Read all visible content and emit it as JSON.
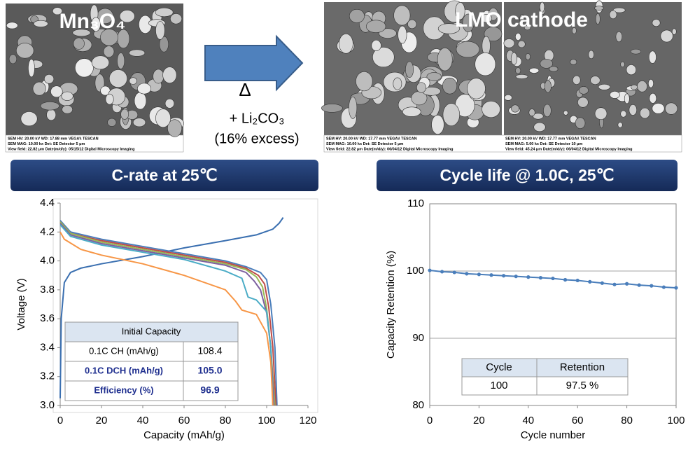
{
  "slide": {
    "left_image": {
      "label": "Mn₃O₄",
      "caption": [
        "SEM HV: 20.00 kV   WD: 17.88 mm            VEGA\\\\ TESCAN",
        "SEM MAG: 10.00 kx   Det: SE Detector   5 μm",
        "View field: 22.82 μm   Date(m/d/y): 05/15/12   Digital Microscopy Imaging"
      ]
    },
    "right_image": {
      "label": "LMO cathode",
      "caption_a": [
        "SEM HV: 20.00 kV   WD: 17.77 mm          VEGA\\\\ TESCAN",
        "SEM MAG: 10.00 kx   Det: SE Detector   5 μm",
        "View field: 22.82 μm   Date(m/d/y): 06/04/12   Digital Microscopy Imaging"
      ],
      "caption_b": [
        "SEM HV: 20.00 kV   WD: 17.77 mm          VEGA\\\\ TESCAN",
        "SEM MAG: 5.00 kx   Det: SE Detector   10 μm",
        "View field: 45.24 μm   Date(m/d/y): 06/04/12   Digital Microscopy Imaging"
      ]
    },
    "arrow": {
      "symbol": "Δ",
      "reagent": "+ Li₂CO₃",
      "note": "(16% excess)"
    },
    "banners": [
      "C-rate at 25℃",
      "Cycle life @ 1.0C, 25℃"
    ]
  },
  "chart_data": [
    {
      "type": "line",
      "xlabel": "Capacity  (mAh/g)",
      "ylabel": "Voltage (V)",
      "xlim": [
        0,
        120
      ],
      "xticks": [
        0,
        20,
        40,
        60,
        80,
        100,
        120
      ],
      "ylim": [
        3.0,
        4.4
      ],
      "yticks": [
        {
          "value": 3.0,
          "label": "3.0"
        },
        3.2,
        3.4,
        3.6,
        3.8,
        {
          "value": 4.0,
          "label": "4.0"
        },
        4.2,
        4.4
      ],
      "series": [
        {
          "color": "#3a6fb0",
          "x": [
            0,
            0.5,
            2,
            5,
            10,
            20,
            40,
            60,
            80,
            95,
            103,
            106,
            108
          ],
          "values": [
            3.05,
            3.6,
            3.85,
            3.92,
            3.95,
            3.98,
            4.03,
            4.09,
            4.14,
            4.18,
            4.22,
            4.26,
            4.3
          ]
        },
        {
          "color": "#4a7ebb",
          "x": [
            0,
            5,
            20,
            40,
            60,
            80,
            90,
            97,
            100,
            102,
            104,
            105
          ],
          "values": [
            4.28,
            4.2,
            4.15,
            4.1,
            4.05,
            4.0,
            3.96,
            3.92,
            3.87,
            3.7,
            3.4,
            3.0
          ]
        },
        {
          "color": "#be4b48",
          "x": [
            0,
            5,
            20,
            40,
            60,
            80,
            90,
            96,
            99,
            101,
            103,
            104.5
          ],
          "values": [
            4.27,
            4.19,
            4.14,
            4.09,
            4.04,
            3.99,
            3.95,
            3.9,
            3.84,
            3.68,
            3.4,
            3.0
          ]
        },
        {
          "color": "#98b954",
          "x": [
            0,
            5,
            20,
            40,
            60,
            80,
            90,
            95,
            98,
            100,
            102,
            104
          ],
          "values": [
            4.27,
            4.19,
            4.13,
            4.08,
            4.03,
            3.98,
            3.94,
            3.89,
            3.82,
            3.67,
            3.4,
            3.0
          ]
        },
        {
          "color": "#7d60a0",
          "x": [
            0,
            5,
            20,
            40,
            60,
            80,
            90,
            94,
            97,
            100,
            102,
            103.5
          ],
          "values": [
            4.26,
            4.18,
            4.12,
            4.07,
            4.02,
            3.97,
            3.92,
            3.86,
            3.8,
            3.64,
            3.4,
            3.0
          ]
        },
        {
          "color": "#4bacc6",
          "x": [
            0,
            5,
            20,
            40,
            60,
            80,
            88,
            91,
            95,
            100,
            102,
            103
          ],
          "values": [
            4.25,
            4.17,
            4.11,
            4.06,
            4.01,
            3.93,
            3.88,
            3.75,
            3.73,
            3.65,
            3.4,
            3.0
          ]
        },
        {
          "color": "#f79646",
          "x": [
            0,
            2,
            10,
            20,
            40,
            60,
            80,
            85,
            88,
            95,
            100,
            102,
            103
          ],
          "values": [
            4.2,
            4.15,
            4.08,
            4.04,
            3.98,
            3.9,
            3.8,
            3.72,
            3.66,
            3.63,
            3.5,
            3.3,
            3.0
          ]
        }
      ],
      "table": {
        "title": "Initial Capacity",
        "rows": [
          [
            "0.1C CH (mAh/g)",
            "108.4"
          ],
          [
            "0.1C DCH (mAh/g)",
            "105.0"
          ],
          [
            "Efficiency (%)",
            "96.9"
          ]
        ]
      }
    },
    {
      "type": "line",
      "xlabel": "Cycle number",
      "ylabel": "Capacity  Retention  (%)",
      "grid": true,
      "xlim": [
        0,
        100
      ],
      "xticks": [
        0,
        20,
        40,
        60,
        80,
        100
      ],
      "ylim": [
        80,
        110
      ],
      "yticks": [
        80,
        90,
        100,
        110
      ],
      "series": [
        {
          "color": "#4a7ebb",
          "x": [
            0,
            5,
            10,
            15,
            20,
            25,
            30,
            35,
            40,
            45,
            50,
            55,
            60,
            65,
            70,
            75,
            80,
            85,
            90,
            95,
            100
          ],
          "values": [
            100.1,
            99.9,
            99.8,
            99.6,
            99.5,
            99.4,
            99.3,
            99.2,
            99.1,
            99.0,
            98.9,
            98.7,
            98.6,
            98.4,
            98.2,
            98.0,
            98.1,
            97.9,
            97.8,
            97.6,
            97.5
          ]
        }
      ],
      "table": {
        "header": [
          "Cycle",
          "Retention"
        ],
        "rows": [
          [
            "100",
            "97.5 %"
          ]
        ]
      }
    }
  ]
}
